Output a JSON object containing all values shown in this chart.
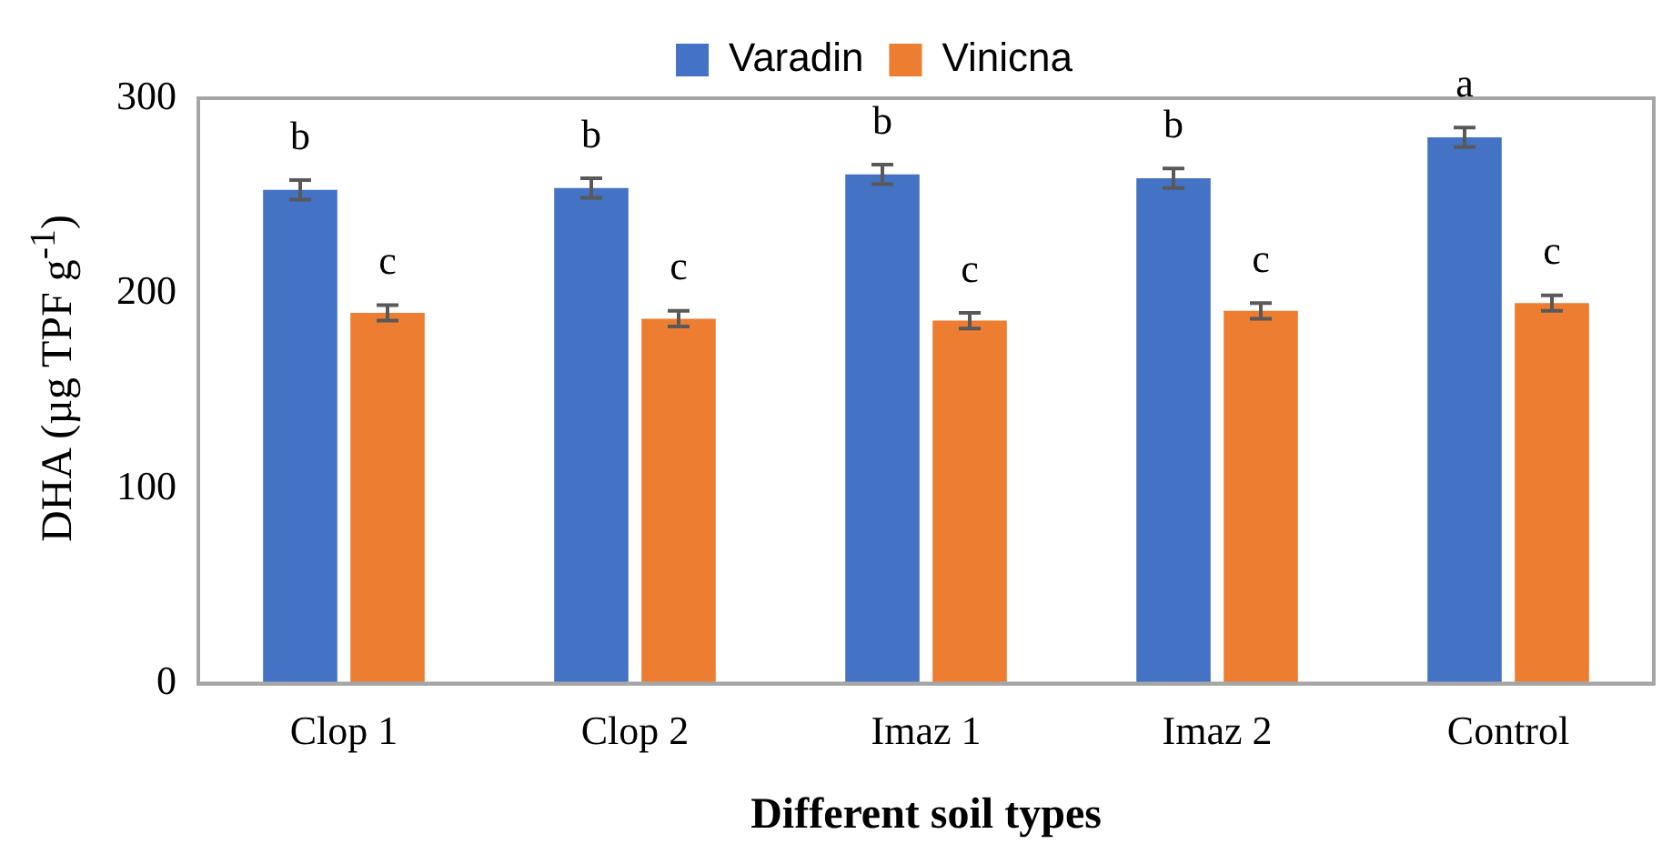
{
  "chart_data": {
    "type": "bar",
    "xlabel": "Different soil types",
    "ylabel": "DHA (µg TPF g$^{-1}$)",
    "categories": [
      "Clop 1",
      "Clop 2",
      "Imaz 1",
      "Imaz 2",
      "Control"
    ],
    "series": [
      {
        "name": "Varadin",
        "color": "#4472c4",
        "values": [
          253,
          254,
          261,
          259,
          280
        ],
        "errors": [
          5,
          5,
          5,
          5,
          5
        ]
      },
      {
        "name": "Vinicna",
        "color": "#ed7d31",
        "values": [
          190,
          187,
          186,
          191,
          195
        ],
        "errors": [
          4,
          4,
          4,
          4,
          4
        ]
      }
    ],
    "ylim": [
      0,
      300
    ],
    "yticks": [
      0,
      100,
      200,
      300
    ],
    "grid": false,
    "legend": "top",
    "annotations": [
      {
        "text": "b",
        "x": "Clop 1",
        "y": 253
      },
      {
        "text": "c",
        "x": "Clop 1",
        "y": 190
      },
      {
        "text": "b",
        "x": "Clop 2",
        "y": 254
      },
      {
        "text": "c",
        "x": "Clop 2",
        "y": 187
      },
      {
        "text": "b",
        "x": "Imaz 1",
        "y": 261
      },
      {
        "text": "c",
        "x": "Imaz 1",
        "y": 186
      },
      {
        "text": "b",
        "x": "Imaz 2",
        "y": 259
      },
      {
        "text": "c",
        "x": "Imaz 2",
        "y": 191
      },
      {
        "text": "a",
        "x": "Control",
        "y": 280
      },
      {
        "text": "c",
        "x": "Control",
        "y": 195
      }
    ]
  }
}
